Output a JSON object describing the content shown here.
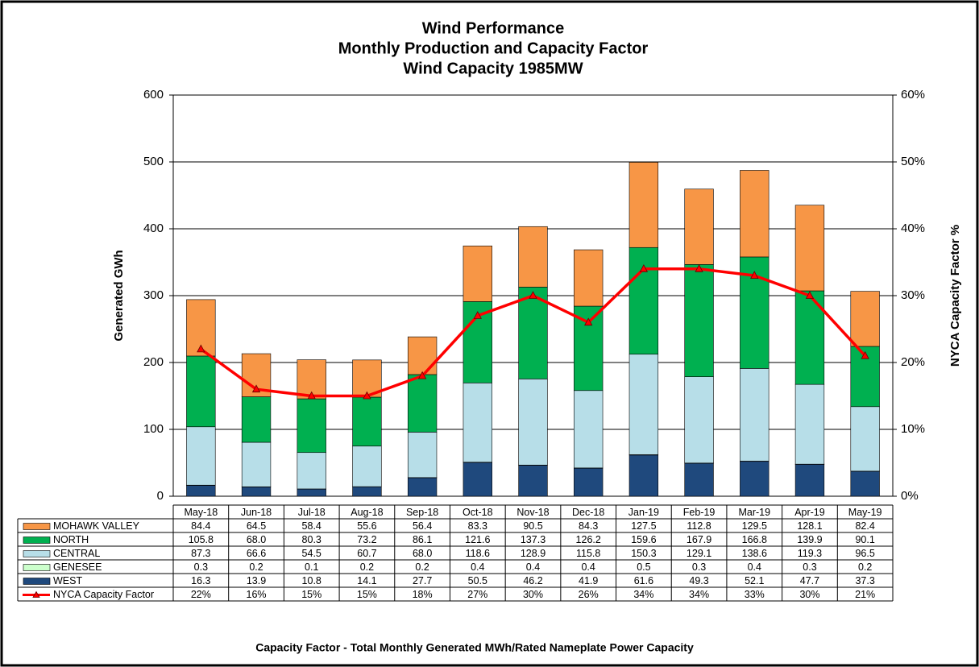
{
  "chart_data": {
    "type": "bar",
    "title": "Wind Performance",
    "subtitle": [
      "Monthly Production and Capacity Factor",
      "Wind Capacity 1985MW"
    ],
    "ylabel": "Generated GWh",
    "y2label": "NYCA Capacity Factor %",
    "footnote": "Capacity Factor  - Total Monthly Generated MWh/Rated Nameplate Power Capacity",
    "stacked": true,
    "grid": true,
    "categories": [
      "May-18",
      "Jun-18",
      "Jul-18",
      "Aug-18",
      "Sep-18",
      "Oct-18",
      "Nov-18",
      "Dec-18",
      "Jan-19",
      "Feb-19",
      "Mar-19",
      "Apr-19",
      "May-19"
    ],
    "series": [
      {
        "name": "MOHAWK VALLEY",
        "color": "#f79646",
        "values": [
          84.4,
          64.5,
          58.4,
          55.6,
          56.4,
          83.3,
          90.5,
          84.3,
          127.5,
          112.8,
          129.5,
          128.1,
          82.4
        ]
      },
      {
        "name": "NORTH",
        "color": "#00b050",
        "values": [
          105.8,
          68.0,
          80.3,
          73.2,
          86.1,
          121.6,
          137.3,
          126.2,
          159.6,
          167.9,
          166.8,
          139.9,
          90.1
        ],
        "value_labels": [
          "105.8",
          "68.0",
          "80.3",
          "73.2",
          "86.1",
          "121.6",
          "137.3",
          "126.2",
          "159.6",
          "167.9",
          "166.8",
          "139.9",
          "90.1"
        ]
      },
      {
        "name": "CENTRAL",
        "color": "#b7dee8",
        "values": [
          87.3,
          66.6,
          54.5,
          60.7,
          68.0,
          118.6,
          128.9,
          115.8,
          150.3,
          129.1,
          138.6,
          119.3,
          96.5
        ],
        "value_labels": [
          "87.3",
          "66.6",
          "54.5",
          "60.7",
          "68.0",
          "118.6",
          "128.9",
          "115.8",
          "150.3",
          "129.1",
          "138.6",
          "119.3",
          "96.5"
        ]
      },
      {
        "name": "GENESEE",
        "color": "#ccffcc",
        "values": [
          0.3,
          0.2,
          0.1,
          0.2,
          0.2,
          0.4,
          0.4,
          0.4,
          0.5,
          0.3,
          0.4,
          0.3,
          0.2
        ]
      },
      {
        "name": "WEST",
        "color": "#1f497d",
        "values": [
          16.3,
          13.9,
          10.8,
          14.1,
          27.7,
          50.5,
          46.2,
          41.9,
          61.6,
          49.3,
          52.1,
          47.7,
          37.3
        ]
      },
      {
        "name": "NYCA Capacity Factor",
        "type": "line",
        "axis": "y2",
        "color": "#ff0000",
        "values": [
          22,
          16,
          15,
          15,
          18,
          27,
          30,
          26,
          34,
          34,
          33,
          30,
          21
        ],
        "value_labels": [
          "22%",
          "16%",
          "15%",
          "15%",
          "18%",
          "27%",
          "30%",
          "26%",
          "34%",
          "34%",
          "33%",
          "30%",
          "21%"
        ]
      }
    ],
    "ylim": [
      0,
      600
    ],
    "yticks": [
      0,
      100,
      200,
      300,
      400,
      500,
      600
    ],
    "y2lim": [
      0,
      60
    ],
    "y2ticks": [
      {
        "value": 0,
        "label": "0%"
      },
      {
        "value": 10,
        "label": "10%"
      },
      {
        "value": 20,
        "label": "20%"
      },
      {
        "value": 30,
        "label": "30%"
      },
      {
        "value": 40,
        "label": "40%"
      },
      {
        "value": 50,
        "label": "50%"
      },
      {
        "value": 60,
        "label": "60%"
      }
    ]
  }
}
